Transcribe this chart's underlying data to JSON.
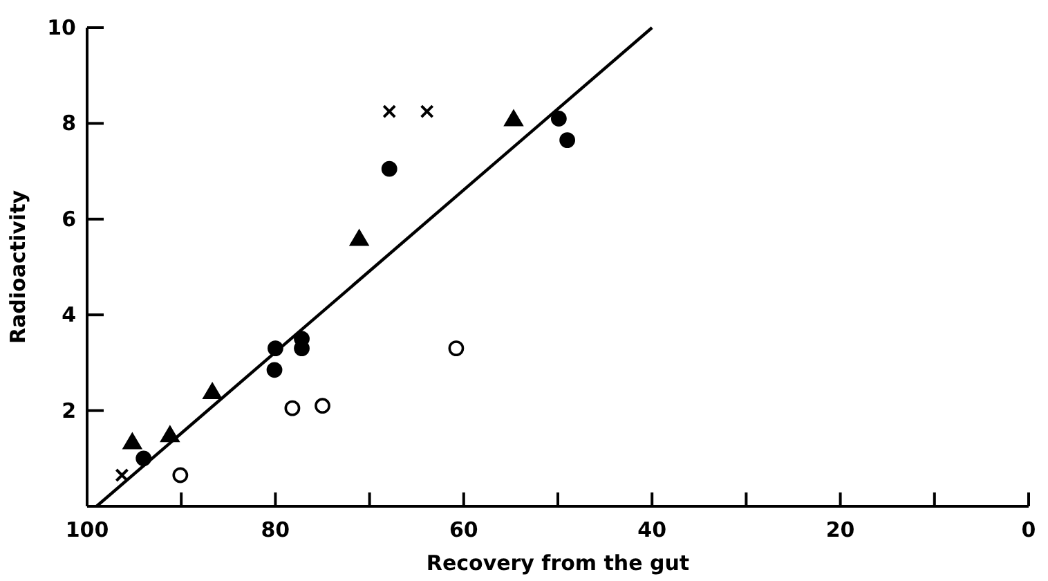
{
  "chart_data": {
    "type": "scatter",
    "xlabel": "Recovery from the gut",
    "ylabel": "Radioactivity",
    "xlim": [
      100,
      0
    ],
    "ylim": [
      0,
      10
    ],
    "xticks": [
      100,
      {
        "value": 90,
        "label": null
      },
      80,
      {
        "value": 70,
        "label": null
      },
      60,
      {
        "value": 50,
        "label": null
      },
      40,
      {
        "value": 30,
        "label": null
      },
      20,
      {
        "value": 10,
        "label": null
      },
      0
    ],
    "yticks": [
      2,
      4,
      6,
      8,
      10
    ],
    "grid": false,
    "series": [
      {
        "marker": "triangle",
        "color": "#000000",
        "x": [
          95.2,
          91.2,
          86.7,
          71.1,
          54.7
        ],
        "values": [
          1.35,
          1.5,
          2.4,
          5.6,
          8.1
        ]
      },
      {
        "marker": "circle",
        "color": "#000000",
        "x": [
          94.0,
          80.1,
          80.0,
          77.2,
          77.2,
          67.9,
          49.9,
          49.0
        ],
        "values": [
          1.0,
          2.85,
          3.3,
          3.3,
          3.5,
          7.05,
          8.1,
          7.65
        ]
      },
      {
        "marker": "circle",
        "color": "#ffffff",
        "x": [
          90.1,
          78.2,
          75.0,
          60.8
        ],
        "values": [
          0.65,
          2.05,
          2.1,
          3.3
        ]
      },
      {
        "marker": "cross",
        "color": "#000000",
        "x": [
          96.3,
          67.9,
          63.9
        ],
        "values": [
          0.65,
          8.25,
          8.25
        ]
      },
      {
        "type": "line",
        "marker": "none",
        "color": "#000000",
        "x": [
          99,
          40
        ],
        "values": [
          0,
          10
        ]
      }
    ]
  }
}
